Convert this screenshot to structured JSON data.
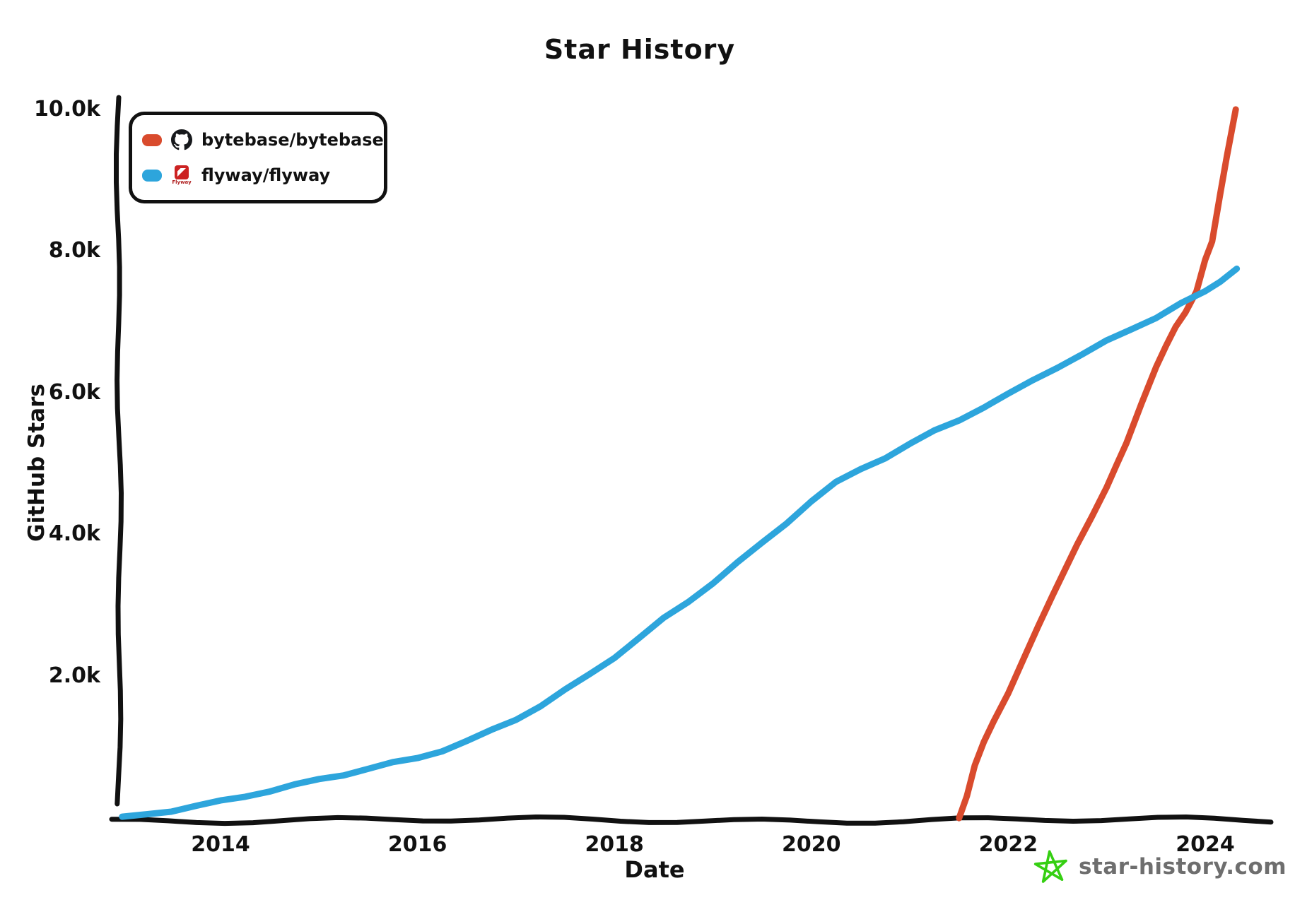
{
  "title": "Star History",
  "x_axis": {
    "title": "Date",
    "ticks": [
      {
        "label": "2014",
        "year": 2014
      },
      {
        "label": "2016",
        "year": 2016
      },
      {
        "label": "2018",
        "year": 2018
      },
      {
        "label": "2020",
        "year": 2020
      },
      {
        "label": "2022",
        "year": 2022
      },
      {
        "label": "2024",
        "year": 2024
      }
    ]
  },
  "y_axis": {
    "title": "GitHub Stars",
    "ticks": [
      {
        "label": "10.0k",
        "value": 10000
      },
      {
        "label": "8.0k",
        "value": 8000
      },
      {
        "label": "6.0k",
        "value": 6000
      },
      {
        "label": "4.0k",
        "value": 4000
      },
      {
        "label": "2.0k",
        "value": 2000
      }
    ]
  },
  "legend": [
    {
      "label": "bytebase/bytebase",
      "color": "#d94b2d",
      "icon": "github-octocat-icon"
    },
    {
      "label": "flyway/flyway",
      "color": "#2da5dc",
      "icon": "flyway-logo-icon",
      "icon_caption": "Flyway"
    }
  ],
  "footer": {
    "text": "star-history.com",
    "star_color": "#35cf12",
    "text_color": "#6e6e6e"
  },
  "colors": {
    "axis": "#111111",
    "bytebase": "#d94b2d",
    "flyway": "#2da5dc"
  },
  "chart_data": {
    "type": "line",
    "title": "Star History",
    "xlabel": "Date",
    "ylabel": "GitHub Stars",
    "x_range": [
      2012.97,
      2024.35
    ],
    "ylim": [
      0,
      10000
    ],
    "grid": false,
    "legend_position": "top-left",
    "series": [
      {
        "name": "bytebase/bytebase",
        "color": "#d94b2d",
        "points": [
          [
            2021.5,
            0
          ],
          [
            2021.58,
            320
          ],
          [
            2021.66,
            760
          ],
          [
            2021.75,
            1100
          ],
          [
            2021.85,
            1400
          ],
          [
            2022.0,
            1800
          ],
          [
            2022.15,
            2250
          ],
          [
            2022.3,
            2700
          ],
          [
            2022.45,
            3150
          ],
          [
            2022.6,
            3600
          ],
          [
            2022.7,
            3900
          ],
          [
            2022.85,
            4300
          ],
          [
            2023.0,
            4700
          ],
          [
            2023.1,
            5000
          ],
          [
            2023.2,
            5300
          ],
          [
            2023.35,
            5850
          ],
          [
            2023.5,
            6390
          ],
          [
            2023.6,
            6700
          ],
          [
            2023.7,
            6980
          ],
          [
            2023.8,
            7180
          ],
          [
            2023.91,
            7460
          ],
          [
            2024.0,
            7900
          ],
          [
            2024.07,
            8150
          ],
          [
            2024.15,
            8800
          ],
          [
            2024.22,
            9350
          ],
          [
            2024.31,
            10020
          ]
        ]
      },
      {
        "name": "flyway/flyway",
        "color": "#2da5dc",
        "points": [
          [
            2013.0,
            20
          ],
          [
            2013.25,
            70
          ],
          [
            2013.5,
            130
          ],
          [
            2013.75,
            190
          ],
          [
            2014.0,
            250
          ],
          [
            2014.25,
            330
          ],
          [
            2014.5,
            410
          ],
          [
            2014.75,
            480
          ],
          [
            2015.0,
            560
          ],
          [
            2015.25,
            640
          ],
          [
            2015.5,
            720
          ],
          [
            2015.75,
            790
          ],
          [
            2016.0,
            870
          ],
          [
            2016.25,
            980
          ],
          [
            2016.5,
            1100
          ],
          [
            2016.75,
            1250
          ],
          [
            2017.0,
            1420
          ],
          [
            2017.25,
            1610
          ],
          [
            2017.5,
            1820
          ],
          [
            2017.75,
            2050
          ],
          [
            2018.0,
            2300
          ],
          [
            2018.25,
            2560
          ],
          [
            2018.5,
            2830
          ],
          [
            2018.75,
            3080
          ],
          [
            2019.0,
            3350
          ],
          [
            2019.25,
            3620
          ],
          [
            2019.5,
            3900
          ],
          [
            2019.75,
            4200
          ],
          [
            2020.0,
            4500
          ],
          [
            2020.25,
            4750
          ],
          [
            2020.5,
            4950
          ],
          [
            2020.75,
            5120
          ],
          [
            2021.0,
            5300
          ],
          [
            2021.25,
            5480
          ],
          [
            2021.5,
            5650
          ],
          [
            2021.75,
            5830
          ],
          [
            2022.0,
            6000
          ],
          [
            2022.25,
            6200
          ],
          [
            2022.5,
            6400
          ],
          [
            2022.75,
            6570
          ],
          [
            2023.0,
            6750
          ],
          [
            2023.25,
            6930
          ],
          [
            2023.5,
            7100
          ],
          [
            2023.75,
            7280
          ],
          [
            2024.0,
            7450
          ],
          [
            2024.15,
            7600
          ],
          [
            2024.32,
            7800
          ]
        ]
      }
    ]
  }
}
